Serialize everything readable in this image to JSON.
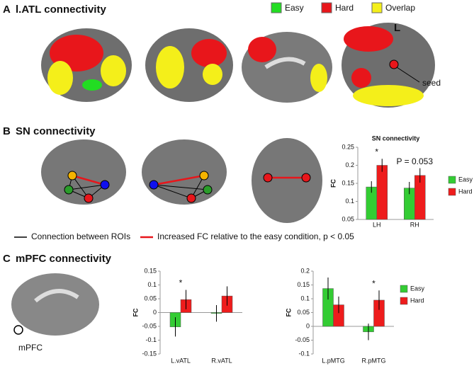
{
  "panels": {
    "a": {
      "letter": "A",
      "title": "l.ATL connectivity",
      "legend": [
        {
          "name": "Easy",
          "color": "#22dd22"
        },
        {
          "name": "Hard",
          "color": "#e8161b"
        },
        {
          "name": "Overlap",
          "color": "#f4ef1a"
        }
      ],
      "side_label": "L",
      "seed_label": "seed"
    },
    "b": {
      "letter": "B",
      "title": "SN connectivity",
      "legend_lines": [
        "Connection between ROIs",
        "Increased FC relative to the easy condition, p < 0.05"
      ]
    },
    "c": {
      "letter": "C",
      "title": "mPFC connectivity",
      "region_label": "mPFC"
    }
  },
  "chart_data": [
    {
      "type": "bar",
      "title": "SN connectivity",
      "ylabel": "FC",
      "categories": [
        "LH",
        "RH"
      ],
      "series": [
        {
          "name": "Easy",
          "color": "#33cc33",
          "values": [
            0.14,
            0.137
          ],
          "errors": [
            0.016,
            0.017
          ]
        },
        {
          "name": "Hard",
          "color": "#ee1c1c",
          "values": [
            0.2,
            0.172
          ],
          "errors": [
            0.018,
            0.02
          ]
        }
      ],
      "ylim": [
        0.05,
        0.25
      ],
      "yticks": [
        0.05,
        0.1,
        0.15,
        0.2,
        0.25
      ],
      "legend": "right",
      "annotations": [
        {
          "text": "*",
          "category": "LH"
        },
        {
          "text": "P = 0.053",
          "category": "RH"
        }
      ]
    },
    {
      "type": "bar",
      "ylabel": "FC",
      "categories": [
        "L.vATL",
        "R.vATL"
      ],
      "series": [
        {
          "name": "Easy",
          "color": "#33cc33",
          "values": [
            -0.052,
            -0.003
          ],
          "errors": [
            0.035,
            0.03
          ]
        },
        {
          "name": "Hard",
          "color": "#ee1c1c",
          "values": [
            0.047,
            0.06
          ],
          "errors": [
            0.035,
            0.035
          ]
        }
      ],
      "ylim": [
        -0.15,
        0.15
      ],
      "yticks": [
        -0.15,
        -0.1,
        -0.05,
        0,
        0.05,
        0.1,
        0.15
      ],
      "legend": false,
      "annotations": [
        {
          "text": "*",
          "category": "L.vATL"
        }
      ]
    },
    {
      "type": "bar",
      "ylabel": "FC",
      "categories": [
        "L.pMTG",
        "R.pMTG"
      ],
      "series": [
        {
          "name": "Easy",
          "color": "#33cc33",
          "values": [
            0.137,
            -0.02
          ],
          "errors": [
            0.04,
            0.03
          ]
        },
        {
          "name": "Hard",
          "color": "#ee1c1c",
          "values": [
            0.078,
            0.095
          ],
          "errors": [
            0.03,
            0.035
          ]
        }
      ],
      "ylim": [
        -0.1,
        0.2
      ],
      "yticks": [
        -0.1,
        -0.05,
        0,
        0.05,
        0.1,
        0.15,
        0.2
      ],
      "legend": "right",
      "annotations": [
        {
          "text": "*",
          "category": "R.pMTG"
        }
      ]
    }
  ]
}
